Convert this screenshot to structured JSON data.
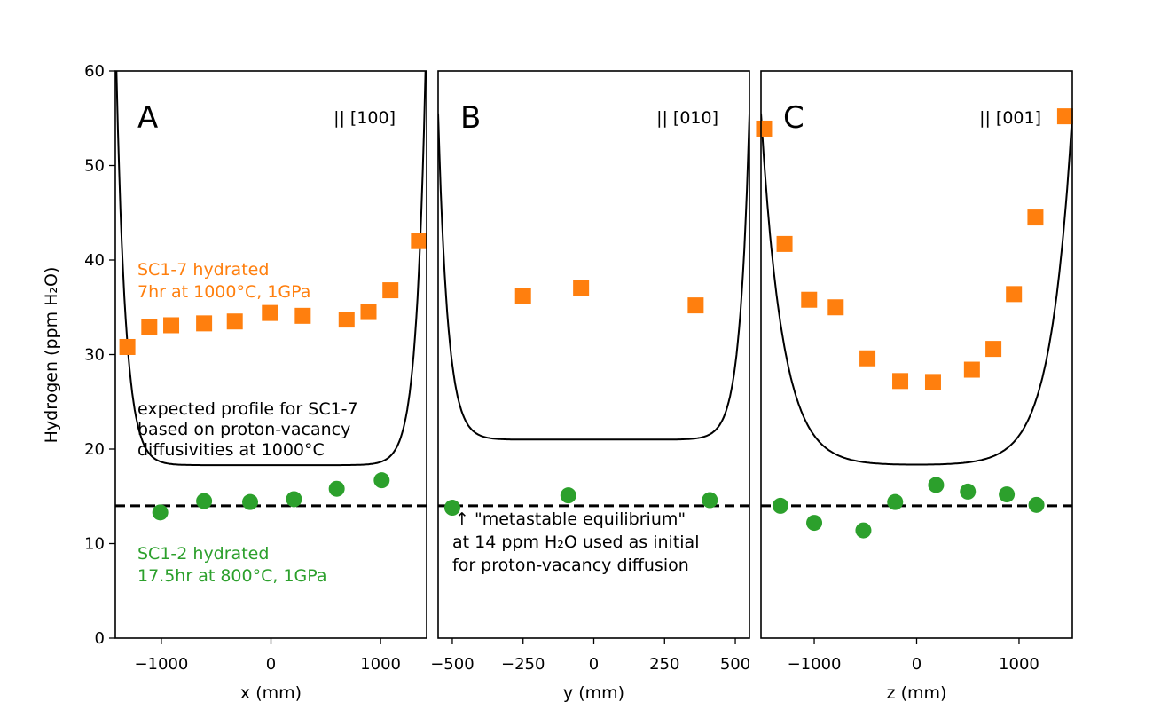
{
  "chart_data": {
    "type": "scatter",
    "ylabel": "Hydrogen (ppm H₂O)",
    "ylim": [
      0,
      60
    ],
    "yticks": [
      0,
      10,
      20,
      30,
      40,
      50,
      60
    ],
    "reference_line": {
      "y": 14,
      "style": "dashed",
      "color": "#000000"
    },
    "colors": {
      "SC1-7": "#ff7f0e",
      "SC1-2": "#2ca02c",
      "model": "#000000"
    },
    "panels": [
      {
        "letter": "A",
        "orientation": "|| [100]",
        "xlabel": "x (mm)",
        "xlim": [
          -1420,
          1420
        ],
        "xticks": [
          -1000,
          0,
          1000
        ],
        "xtick_labels": [
          "−1000",
          "0",
          "1000"
        ],
        "series": [
          {
            "marker": "square",
            "color": "#ff7f0e",
            "points": [
              [
                -1310,
                30.8
              ],
              [
                -1110,
                32.9
              ],
              [
                -910,
                33.1
              ],
              [
                -610,
                33.3
              ],
              [
                -330,
                33.5
              ],
              [
                -10,
                34.4
              ],
              [
                290,
                34.1
              ],
              [
                690,
                33.7
              ],
              [
                890,
                34.5
              ],
              [
                1090,
                36.8
              ],
              [
                1350,
                42.0
              ]
            ]
          },
          {
            "marker": "circle",
            "color": "#2ca02c",
            "points": [
              [
                -1010,
                13.3
              ],
              [
                -610,
                14.5
              ],
              [
                -190,
                14.4
              ],
              [
                210,
                14.7
              ],
              [
                600,
                15.8
              ],
              [
                1010,
                16.7
              ]
            ]
          }
        ],
        "model": {
          "base": 18.3,
          "peak": 55.5,
          "half_width": 1400,
          "decay": 85
        }
      },
      {
        "letter": "B",
        "orientation": "|| [010]",
        "xlabel": "y (mm)",
        "xlim": [
          -550,
          550
        ],
        "xticks": [
          -500,
          -250,
          0,
          250,
          500
        ],
        "xtick_labels": [
          "−500",
          "−250",
          "0",
          "250",
          "500"
        ],
        "series": [
          {
            "marker": "square",
            "color": "#ff7f0e",
            "points": [
              [
                -250,
                36.2
              ],
              [
                -45,
                37.0
              ],
              [
                360,
                35.2
              ]
            ]
          },
          {
            "marker": "circle",
            "color": "#2ca02c",
            "points": [
              [
                -500,
                13.8
              ],
              [
                -90,
                15.1
              ],
              [
                410,
                14.6
              ]
            ]
          }
        ],
        "model": {
          "base": 21.0,
          "peak": 55.5,
          "half_width": 550,
          "decay": 34
        }
      },
      {
        "letter": "C",
        "orientation": "|| [001]",
        "xlabel": "z (mm)",
        "xlim": [
          -1520,
          1520
        ],
        "xticks": [
          -1000,
          0,
          1000
        ],
        "xtick_labels": [
          "−1000",
          "0",
          "1000"
        ],
        "series": [
          {
            "marker": "square",
            "color": "#ff7f0e",
            "points": [
              [
                -1490,
                53.9
              ],
              [
                -1290,
                41.7
              ],
              [
                -1050,
                35.8
              ],
              [
                -790,
                35.0
              ],
              [
                -480,
                29.6
              ],
              [
                -160,
                27.2
              ],
              [
                160,
                27.1
              ],
              [
                540,
                28.4
              ],
              [
                750,
                30.6
              ],
              [
                950,
                36.4
              ],
              [
                1160,
                44.5
              ],
              [
                1450,
                55.2
              ]
            ]
          },
          {
            "marker": "circle",
            "color": "#2ca02c",
            "points": [
              [
                -1330,
                14.0
              ],
              [
                -1000,
                12.2
              ],
              [
                -520,
                11.4
              ],
              [
                -210,
                14.4
              ],
              [
                190,
                16.2
              ],
              [
                500,
                15.5
              ],
              [
                880,
                15.2
              ],
              [
                1170,
                14.1
              ]
            ]
          }
        ],
        "model": {
          "base": 18.3,
          "peak": 55.5,
          "half_width": 1520,
          "decay": 210
        }
      }
    ],
    "annotations": {
      "sc17": {
        "color": "#ff7f0e",
        "lines": [
          "SC1-7 hydrated",
          "7hr at 1000°C, 1GPa"
        ]
      },
      "expected": {
        "color": "#000000",
        "lines": [
          "expected profile for SC1-7",
          "based on proton-vacancy",
          "diffusivities at 1000°C"
        ]
      },
      "sc12": {
        "color": "#2ca02c",
        "lines": [
          "SC1-2 hydrated",
          "17.5hr at 800°C, 1GPa"
        ]
      },
      "metastable": {
        "color": "#000000",
        "lines": [
          "↑  \"metastable equilibrium\"",
          "at 14 ppm H₂O used as initial",
          "for proton-vacancy diffusion"
        ]
      }
    }
  }
}
